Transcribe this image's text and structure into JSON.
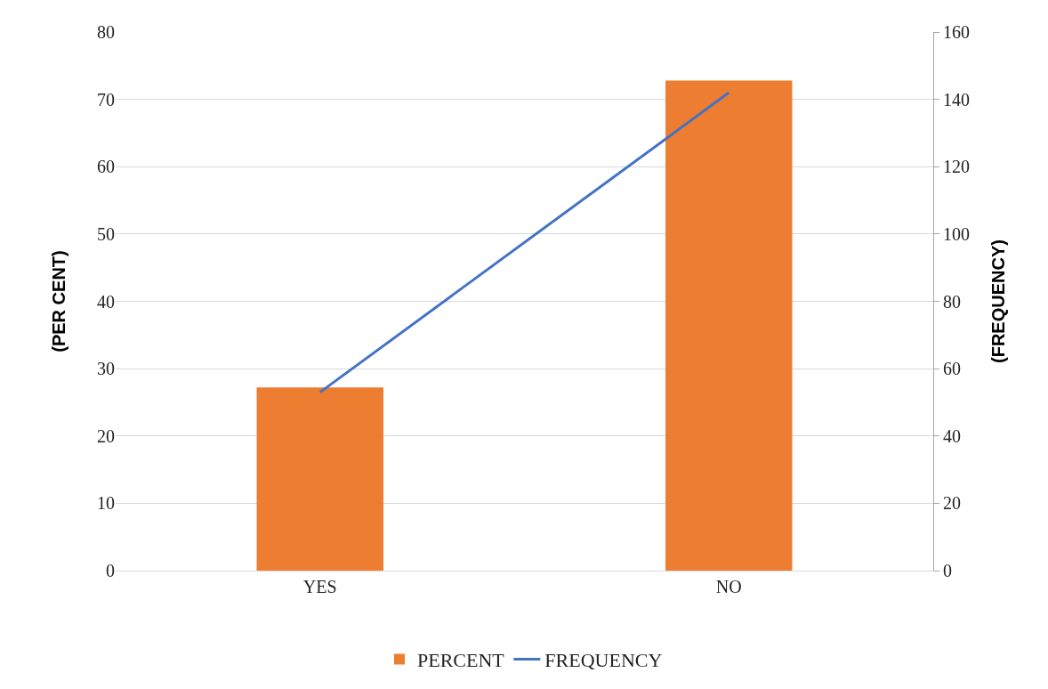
{
  "chart_data": {
    "type": "bar",
    "categories": [
      "YES",
      "NO"
    ],
    "ylabel": "(PER CENT)",
    "y2label": "(FREQUENCY)",
    "series": [
      {
        "name": "PERCENT",
        "color": "#ed7d31",
        "values": [
          27.2,
          72.8
        ]
      },
      {
        "name": "FREQUENCY",
        "type": "line",
        "axis": "y2",
        "color": "#4472c4",
        "values": [
          53,
          142
        ]
      }
    ],
    "ylim": [
      0,
      80
    ],
    "yticks": [
      0,
      10,
      20,
      30,
      40,
      50,
      60,
      70,
      80
    ],
    "y2lim": [
      0,
      160
    ],
    "y2ticks": [
      0,
      20,
      40,
      60,
      80,
      100,
      120,
      140,
      160
    ],
    "grid": "y",
    "legend": "bottom",
    "marker": "none",
    "line_style": "solid"
  }
}
